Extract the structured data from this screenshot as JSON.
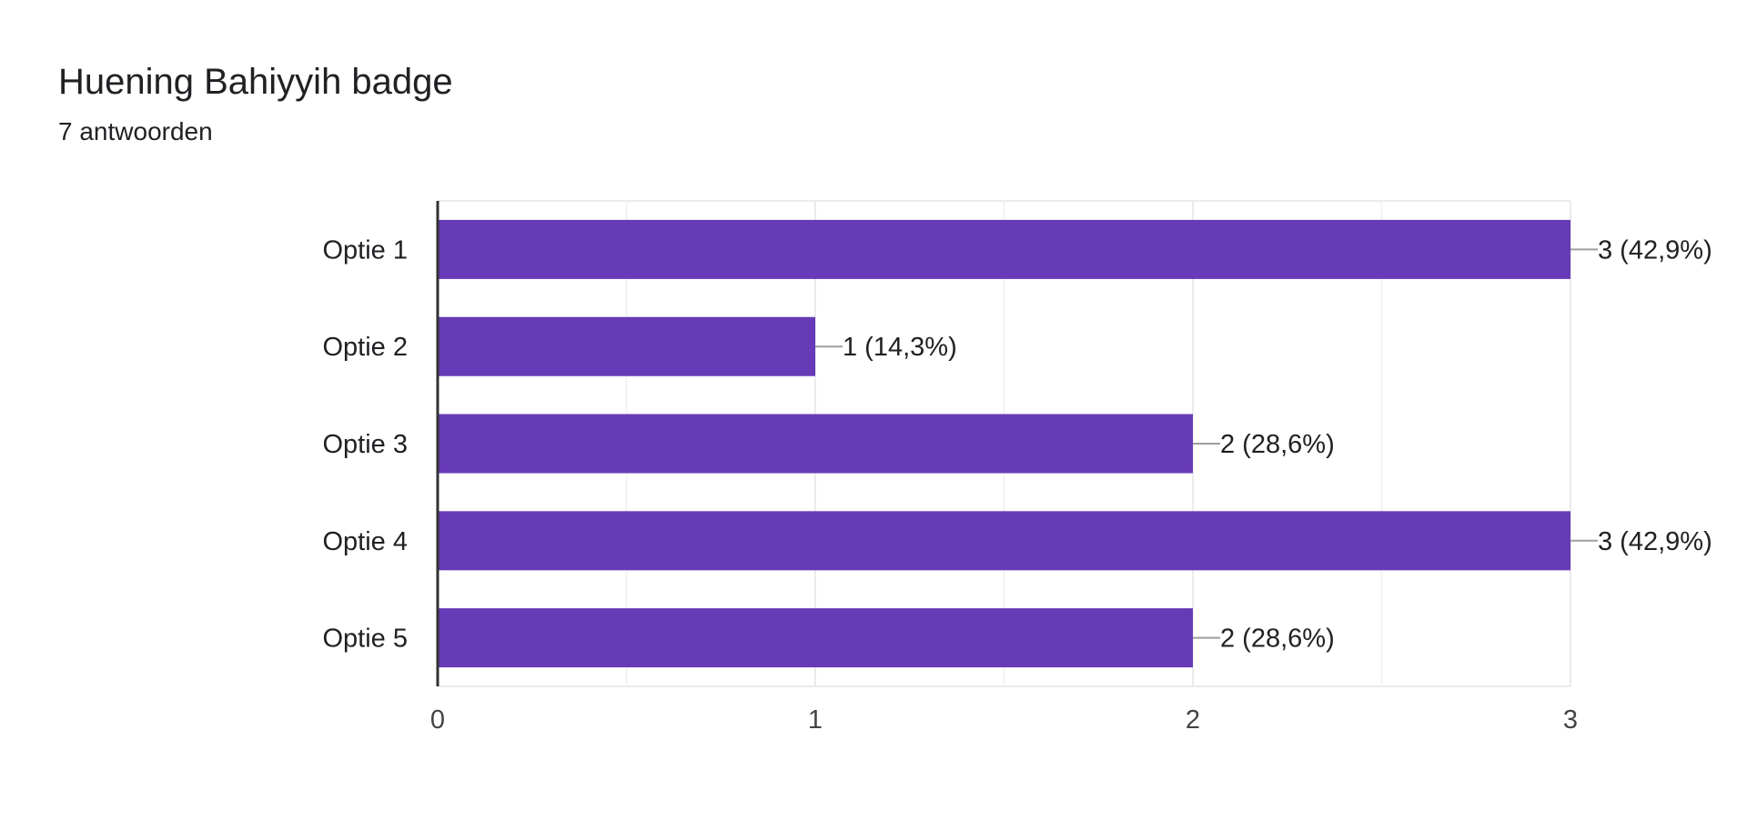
{
  "header": {
    "title": "Huening Bahiyyih badge",
    "response_count": "7 antwoorden"
  },
  "colors": {
    "bar": "#673ab7",
    "grid": "#ebebeb",
    "axis": "#333333",
    "leader": "#9e9e9e",
    "text": "#202124"
  },
  "chart_data": {
    "type": "bar",
    "orientation": "horizontal",
    "categories": [
      "Optie 1",
      "Optie 2",
      "Optie 3",
      "Optie 4",
      "Optie 5"
    ],
    "values": [
      3,
      1,
      2,
      3,
      2
    ],
    "data_labels": [
      "3 (42,9%)",
      "1 (14,3%)",
      "2 (28,6%)",
      "3 (42,9%)",
      "2 (28,6%)"
    ],
    "xlim": [
      0,
      3
    ],
    "x_ticks": [
      0,
      1,
      2,
      3
    ],
    "x_tick_labels": [
      "0",
      "1",
      "2",
      "3"
    ],
    "minor_gridlines": [
      0.5,
      1.5,
      2.5
    ],
    "grid": true,
    "legend": "none"
  }
}
